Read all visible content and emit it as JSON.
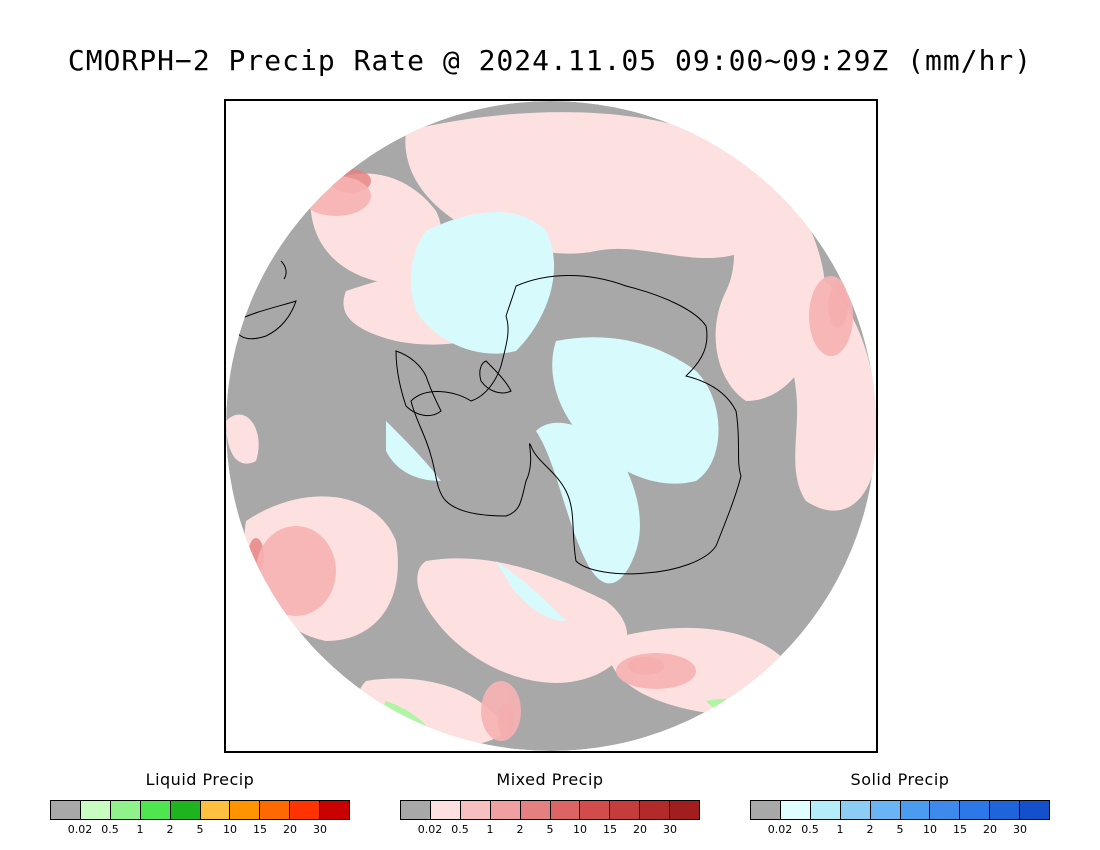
{
  "title": "CMORPH−2 Precip Rate @ 2024.11.05 09:00~09:29Z (mm/hr)",
  "colors": {
    "background": "#a8a8a8",
    "land_outline": "#000000",
    "mixed_light": "#fde1e1",
    "mixed_medium": "#f7b2b2",
    "mixed_heavy": "#dc5f64",
    "solid_light": "#d7fbfd",
    "liquid_light": "#b0f5a6"
  },
  "map": {
    "projection": "south-polar-stereographic",
    "features": [
      "antarctica-coastline",
      "south-america-tip",
      "ice-shelves",
      "sea-ice"
    ]
  },
  "legends": [
    {
      "title": "Liquid Precip",
      "colors": [
        "#a8a8a8",
        "#c8fcc0",
        "#8ff28a",
        "#4fe54f",
        "#1db41d",
        "#ffbf3f",
        "#ff9400",
        "#ff6a00",
        "#ff3300",
        "#c80000"
      ],
      "ticks": [
        "0.02",
        "0.5",
        "1",
        "2",
        "5",
        "10",
        "15",
        "20",
        "30"
      ]
    },
    {
      "title": "Mixed Precip",
      "colors": [
        "#a8a8a8",
        "#fde1e1",
        "#f7bfbf",
        "#f0a0a0",
        "#e58080",
        "#dd6464",
        "#d24c4c",
        "#c53c3c",
        "#b22a2a",
        "#a01e1e"
      ],
      "ticks": [
        "0.02",
        "0.5",
        "1",
        "2",
        "5",
        "10",
        "15",
        "20",
        "30"
      ]
    },
    {
      "title": "Solid Precip",
      "colors": [
        "#a8a8a8",
        "#e0fdff",
        "#b4ecf8",
        "#8ccdf5",
        "#6ab4f5",
        "#4a9cf0",
        "#3d89ec",
        "#2d78e8",
        "#1f64db",
        "#1450cc"
      ],
      "ticks": [
        "0.02",
        "0.5",
        "1",
        "2",
        "5",
        "10",
        "15",
        "20",
        "30"
      ]
    }
  ]
}
